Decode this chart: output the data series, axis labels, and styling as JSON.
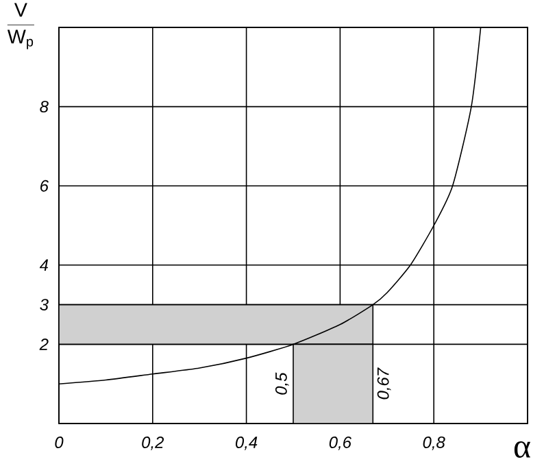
{
  "chart_data": {
    "type": "line",
    "ylabel": "\\frac{\\mathrm{V}}{\\mathrm{W}_{\\mathrm{p}}}",
    "xlabel": "α",
    "x": [
      0,
      0.1,
      0.2,
      0.3,
      0.4,
      0.5,
      0.6,
      0.67,
      0.7,
      0.75,
      0.8,
      0.84,
      0.88,
      0.9
    ],
    "series": [
      {
        "color": "#000000",
        "values": [
          1,
          1.1,
          1.25,
          1.4,
          1.65,
          2,
          2.5,
          3,
          3.3,
          4,
          5,
          6,
          8,
          10
        ]
      }
    ],
    "xlim": [
      0,
      1
    ],
    "ylim": [
      0,
      10
    ],
    "xticks": [
      0,
      {
        "value": 0.2,
        "label": "0,2"
      },
      {
        "value": 0.4,
        "label": "0,4"
      },
      {
        "value": 0.6,
        "label": "0,6"
      },
      {
        "value": 0.8,
        "label": "0,8"
      },
      {
        "value": 1,
        "label": null
      }
    ],
    "yticks": [
      2,
      3,
      4,
      6,
      8,
      {
        "value": 10,
        "label": null
      }
    ],
    "grid": true,
    "marker": "none",
    "line_style": "solid",
    "bands": [
      {
        "axis": "y",
        "from": 2,
        "to": 3,
        "color": "#d0d0d0"
      },
      {
        "axis": "x",
        "from": 0.5,
        "to": 0.67,
        "color": "#d0d0d0"
      }
    ],
    "annotations": [
      {
        "text": "0,5",
        "x": 0.5,
        "y": 1
      },
      {
        "text": "0,67",
        "x": 0.67,
        "y": 1
      }
    ]
  }
}
